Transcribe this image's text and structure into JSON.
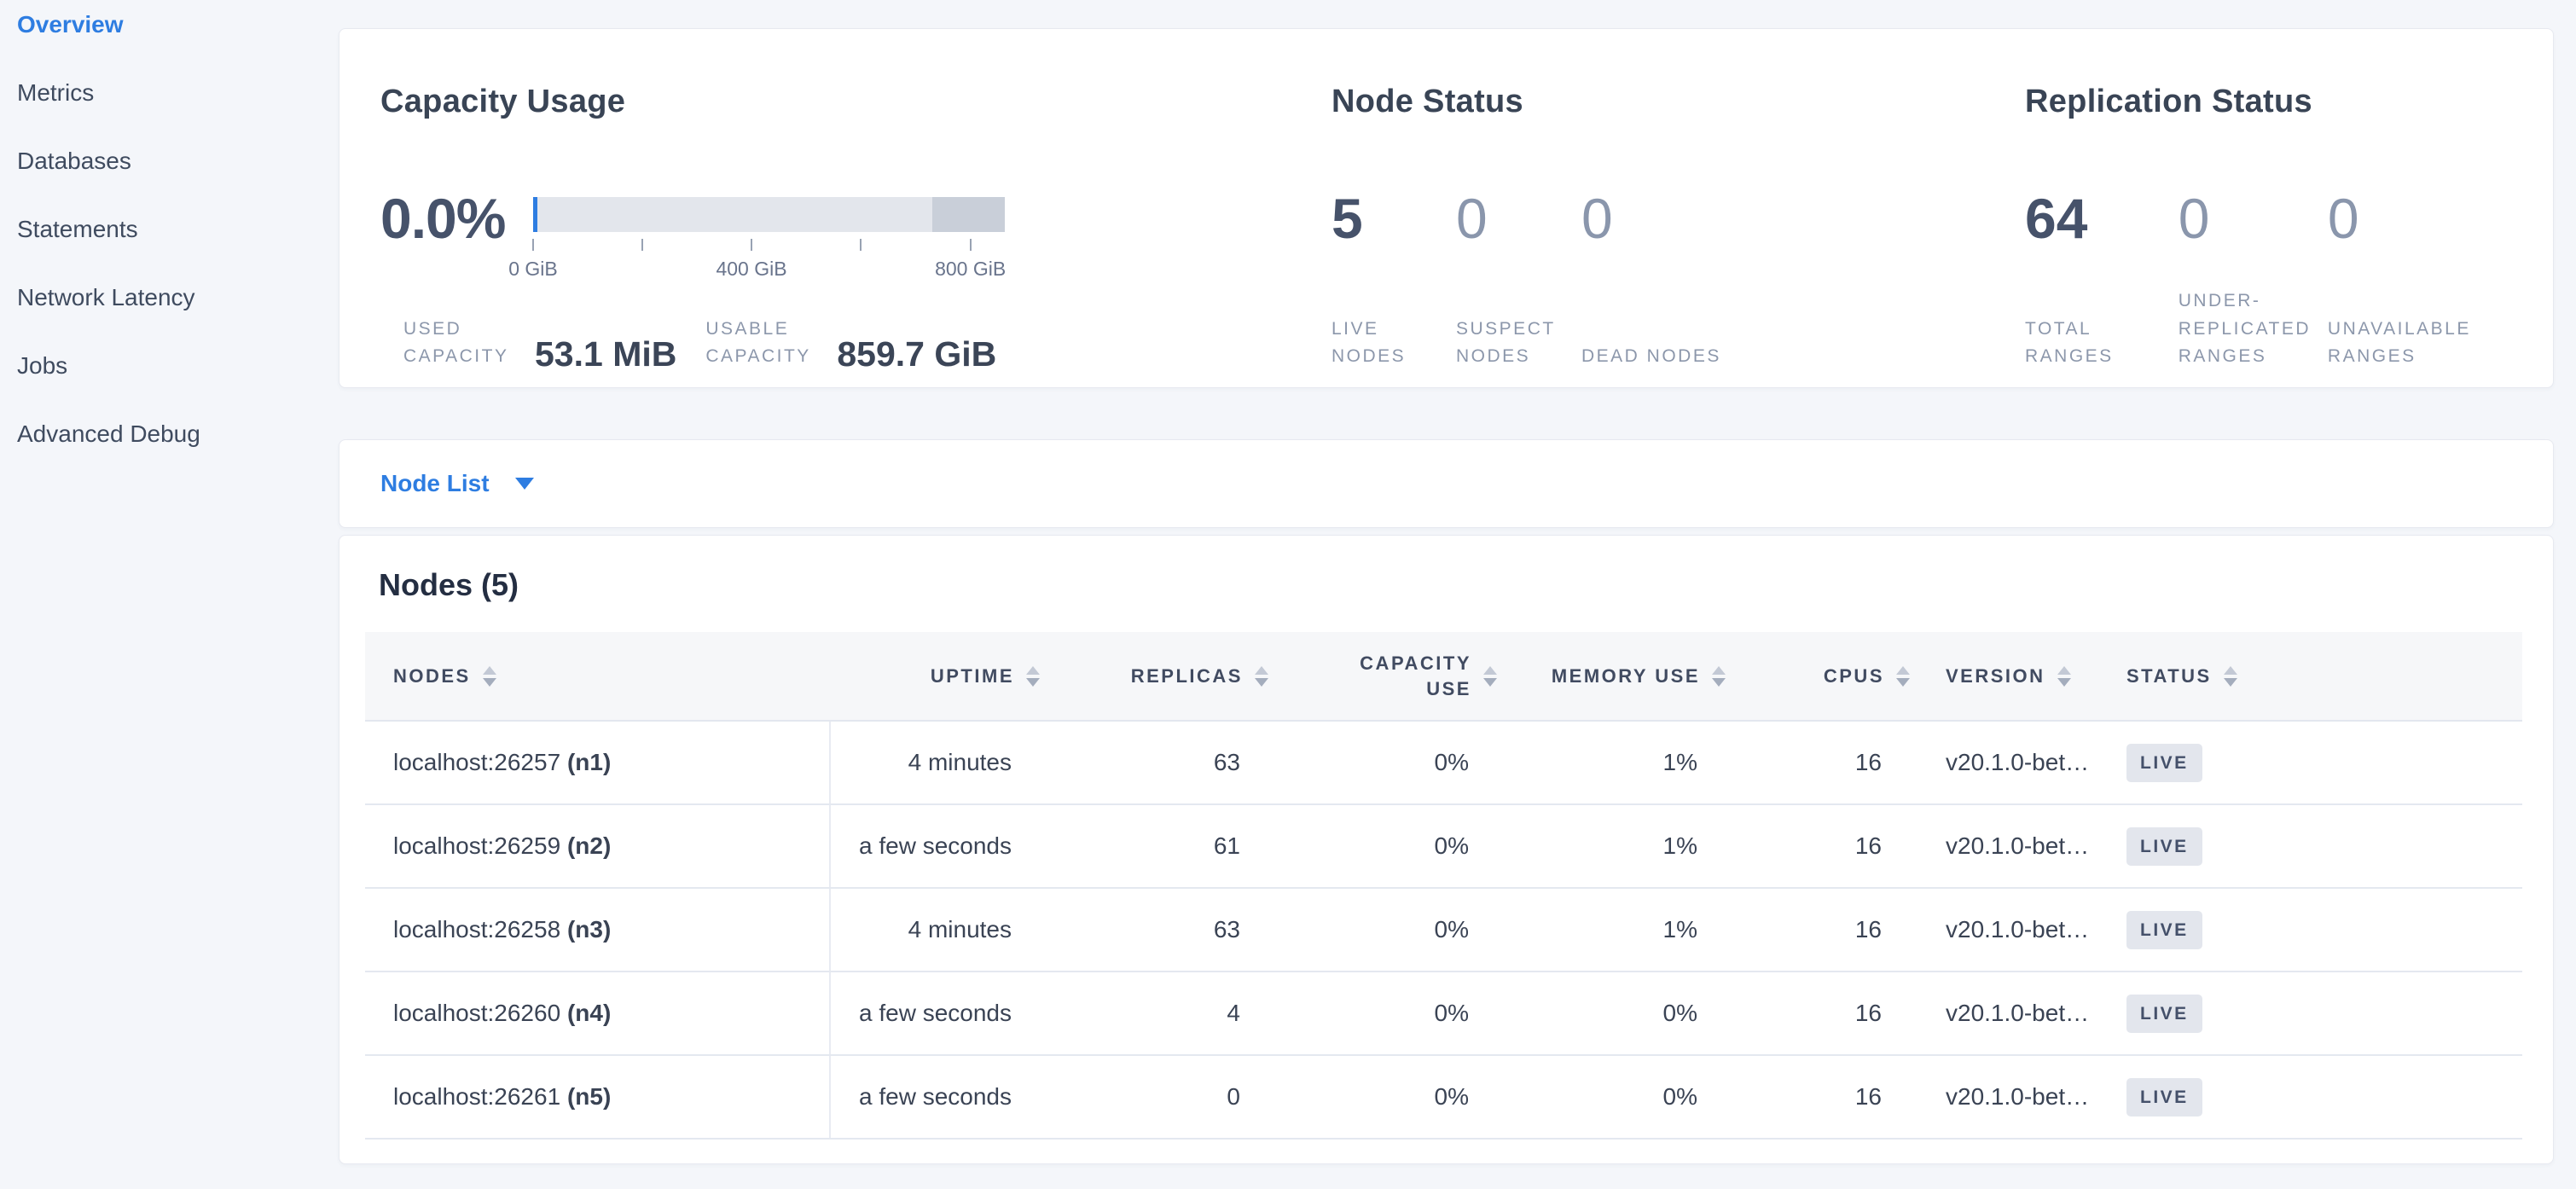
{
  "colors": {
    "accent_blue": "#2e7de1",
    "dark_text": "#394455",
    "muted_value": "#8a96ac",
    "label_gray": "#8c97ab",
    "gauge_bar_light": "#e3e6ec",
    "gauge_bar_dark": "#c9cfd9",
    "badge_bg": "#e3e6ed",
    "page_bg": "#f4f6fa"
  },
  "sidebar": {
    "items": [
      {
        "label": "Overview",
        "active": true
      },
      {
        "label": "Metrics",
        "active": false
      },
      {
        "label": "Databases",
        "active": false
      },
      {
        "label": "Statements",
        "active": false
      },
      {
        "label": "Network Latency",
        "active": false
      },
      {
        "label": "Jobs",
        "active": false
      },
      {
        "label": "Advanced Debug",
        "active": false
      }
    ]
  },
  "summary_card": {
    "capacity": {
      "title": "Capacity Usage",
      "percent": "0.0%",
      "gauge": {
        "ticks": [
          {
            "label": "0 GiB"
          },
          {
            "label": "400 GiB"
          },
          {
            "label": "800 GiB"
          }
        ],
        "used_marker_pct": 0,
        "dark_segment_start_pct": 84.6
      },
      "stats": [
        {
          "label": "USED CAPACITY",
          "value": "53.1 MiB"
        },
        {
          "label": "USABLE CAPACITY",
          "value": "859.7 GiB"
        }
      ]
    },
    "node_status": {
      "title": "Node Status",
      "stats": [
        {
          "value": "5",
          "label": "LIVE NODES"
        },
        {
          "value": "0",
          "label": "SUSPECT NODES"
        },
        {
          "value": "0",
          "label": "DEAD NODES"
        }
      ]
    },
    "replication": {
      "title": "Replication Status",
      "stats": [
        {
          "value": "64",
          "label": "TOTAL RANGES"
        },
        {
          "value": "0",
          "label": "UNDER-REPLICATED RANGES"
        },
        {
          "value": "0",
          "label": "UNAVAILABLE RANGES"
        }
      ]
    }
  },
  "node_list_selector": {
    "label": "Node List"
  },
  "nodes_table": {
    "title": "Nodes (5)",
    "columns": [
      "NODES",
      "UPTIME",
      "REPLICAS",
      "CAPACITY USE",
      "MEMORY USE",
      "CPUS",
      "VERSION",
      "STATUS"
    ],
    "rows": [
      {
        "host": "localhost:26257",
        "id": "(n1)",
        "uptime": "4 minutes",
        "replicas": "63",
        "capacity_use": "0%",
        "memory_use": "1%",
        "cpus": "16",
        "version": "v20.1.0-bet…",
        "status": "LIVE"
      },
      {
        "host": "localhost:26259",
        "id": "(n2)",
        "uptime": "a few seconds",
        "replicas": "61",
        "capacity_use": "0%",
        "memory_use": "1%",
        "cpus": "16",
        "version": "v20.1.0-bet…",
        "status": "LIVE"
      },
      {
        "host": "localhost:26258",
        "id": "(n3)",
        "uptime": "4 minutes",
        "replicas": "63",
        "capacity_use": "0%",
        "memory_use": "1%",
        "cpus": "16",
        "version": "v20.1.0-bet…",
        "status": "LIVE"
      },
      {
        "host": "localhost:26260",
        "id": "(n4)",
        "uptime": "a few seconds",
        "replicas": "4",
        "capacity_use": "0%",
        "memory_use": "0%",
        "cpus": "16",
        "version": "v20.1.0-bet…",
        "status": "LIVE"
      },
      {
        "host": "localhost:26261",
        "id": "(n5)",
        "uptime": "a few seconds",
        "replicas": "0",
        "capacity_use": "0%",
        "memory_use": "0%",
        "cpus": "16",
        "version": "v20.1.0-bet…",
        "status": "LIVE"
      }
    ]
  }
}
